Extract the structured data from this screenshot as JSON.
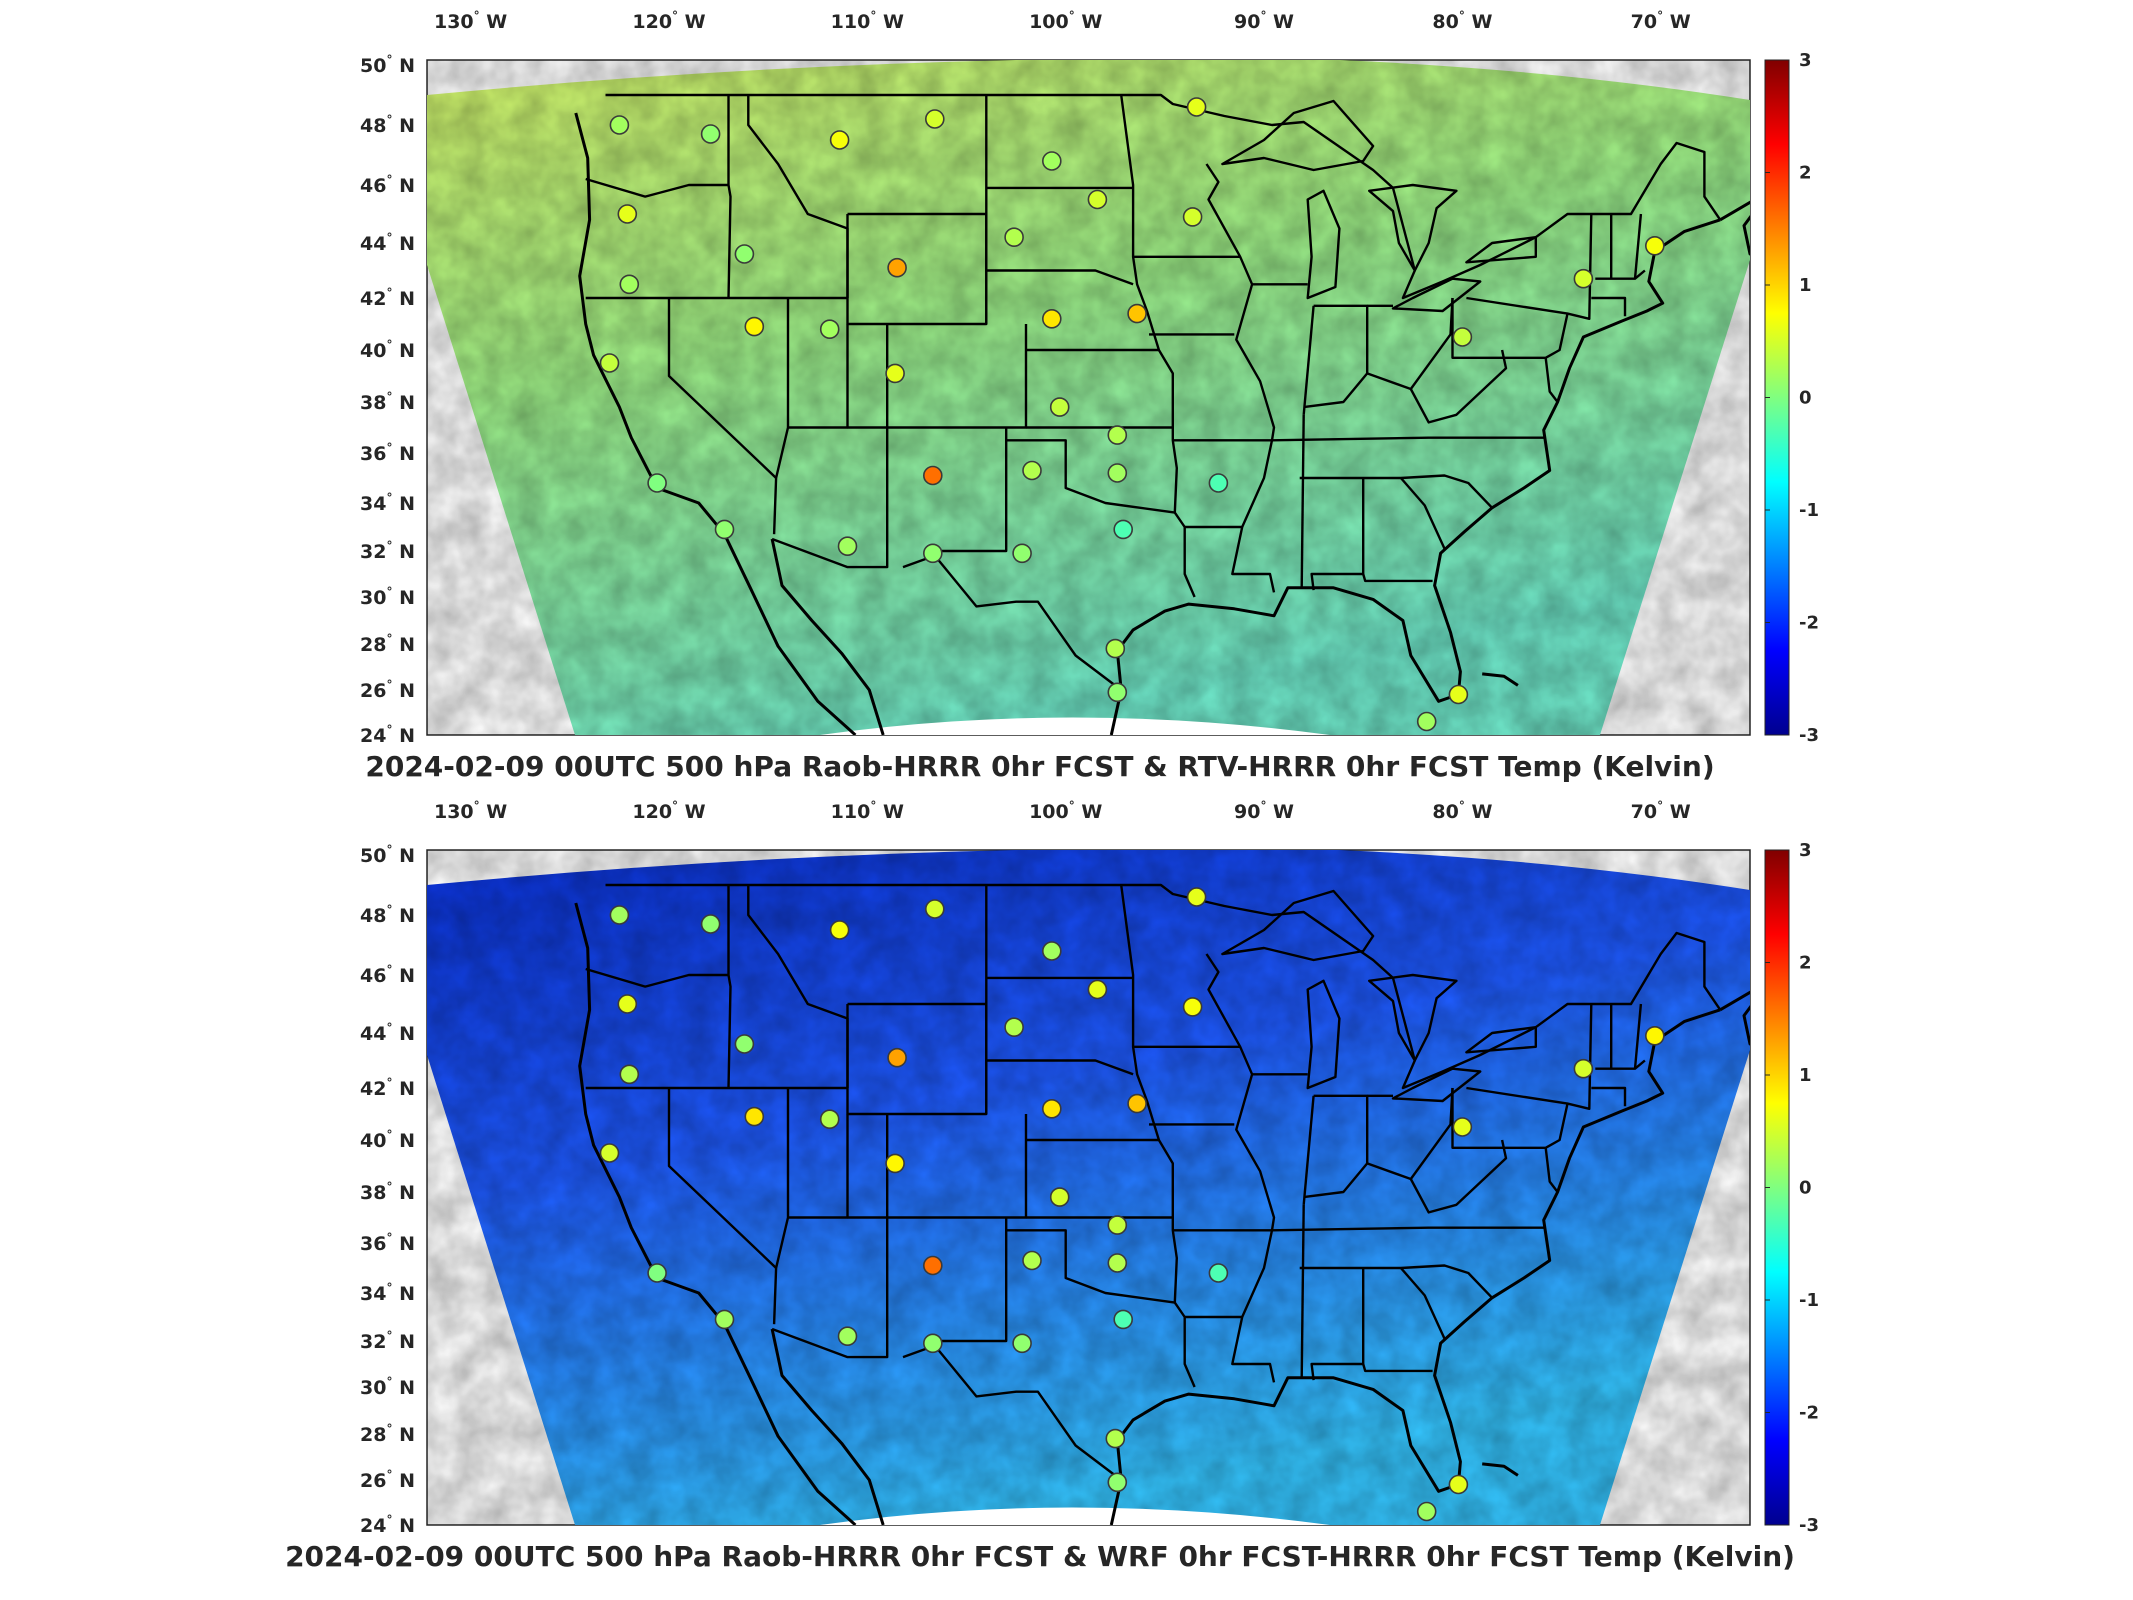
{
  "colorbar": {
    "ticks": [
      "3",
      "2",
      "1",
      "0",
      "-1",
      "-2",
      "-3"
    ],
    "range": [
      -3,
      3
    ],
    "colormap": [
      "#00008f",
      "#0000ff",
      "#0080ff",
      "#00ffff",
      "#80ff80",
      "#ffff00",
      "#ff8000",
      "#ff0000",
      "#800000"
    ]
  },
  "axes": {
    "lon_ticks": [
      "130",
      "120",
      "110",
      "100",
      "90",
      "80",
      "70"
    ],
    "lon_hemi": "W",
    "lat_ticks": [
      "50",
      "48",
      "46",
      "44",
      "42",
      "40",
      "38",
      "36",
      "34",
      "32",
      "30",
      "28",
      "26",
      "24"
    ],
    "lat_hemi": "N",
    "degree_symbol": "°"
  },
  "panels": [
    {
      "title": "2024-02-09 00UTC 500 hPa Raob-HRRR 0hr FCST & RTV-HRRR 0hr FCST Temp (Kelvin)",
      "field_mean_colors": [
        "#9fef88",
        "#6fe6c9",
        "#d6f56a"
      ],
      "stations": [
        {
          "lon": -122.5,
          "lat": 48.0,
          "value": 0.2
        },
        {
          "lon": -117.9,
          "lat": 47.7,
          "value": 0.1
        },
        {
          "lon": -111.4,
          "lat": 47.5,
          "value": 0.7
        },
        {
          "lon": -106.6,
          "lat": 48.2,
          "value": 0.5
        },
        {
          "lon": -100.7,
          "lat": 46.8,
          "value": 0.2
        },
        {
          "lon": -93.4,
          "lat": 48.6,
          "value": 0.6
        },
        {
          "lon": -122.1,
          "lat": 45.0,
          "value": 0.6
        },
        {
          "lon": -116.2,
          "lat": 43.6,
          "value": 0.1
        },
        {
          "lon": -108.5,
          "lat": 43.1,
          "value": 1.3
        },
        {
          "lon": -102.6,
          "lat": 44.2,
          "value": 0.3
        },
        {
          "lon": -98.4,
          "lat": 45.5,
          "value": 0.5
        },
        {
          "lon": -93.6,
          "lat": 44.9,
          "value": 0.5
        },
        {
          "lon": -122.0,
          "lat": 42.5,
          "value": 0.2
        },
        {
          "lon": -115.7,
          "lat": 40.9,
          "value": 0.8
        },
        {
          "lon": -111.9,
          "lat": 40.8,
          "value": 0.2
        },
        {
          "lon": -100.7,
          "lat": 41.2,
          "value": 0.9
        },
        {
          "lon": -96.4,
          "lat": 41.4,
          "value": 1.1
        },
        {
          "lon": -123.0,
          "lat": 39.5,
          "value": 0.4
        },
        {
          "lon": -108.6,
          "lat": 39.1,
          "value": 0.6
        },
        {
          "lon": -100.3,
          "lat": 37.8,
          "value": 0.4
        },
        {
          "lon": -97.4,
          "lat": 36.7,
          "value": 0.3
        },
        {
          "lon": -106.7,
          "lat": 35.1,
          "value": 1.6
        },
        {
          "lon": -101.7,
          "lat": 35.3,
          "value": 0.3
        },
        {
          "lon": -97.4,
          "lat": 35.2,
          "value": 0.2
        },
        {
          "lon": -92.3,
          "lat": 34.8,
          "value": -0.3
        },
        {
          "lon": -120.6,
          "lat": 34.8,
          "value": 0.0
        },
        {
          "lon": -117.2,
          "lat": 32.9,
          "value": 0.1
        },
        {
          "lon": -111.0,
          "lat": 32.2,
          "value": 0.2
        },
        {
          "lon": -106.7,
          "lat": 31.9,
          "value": 0.1
        },
        {
          "lon": -102.2,
          "lat": 31.9,
          "value": 0.1
        },
        {
          "lon": -97.1,
          "lat": 32.9,
          "value": -0.3
        },
        {
          "lon": -97.5,
          "lat": 27.8,
          "value": 0.3
        },
        {
          "lon": -97.4,
          "lat": 25.9,
          "value": 0.1
        },
        {
          "lon": -80.2,
          "lat": 25.8,
          "value": 0.6
        },
        {
          "lon": -81.8,
          "lat": 24.6,
          "value": 0.2
        },
        {
          "lon": -80.0,
          "lat": 40.5,
          "value": 0.4
        },
        {
          "lon": -73.9,
          "lat": 42.7,
          "value": 0.5
        },
        {
          "lon": -70.3,
          "lat": 43.9,
          "value": 0.7
        }
      ]
    },
    {
      "title": "2024-02-09 00UTC 500 hPa Raob-HRRR 0hr FCST & WRF 0hr FCST-HRRR 0hr FCST Temp (Kelvin)",
      "field_mean_colors": [
        "#1f5bff",
        "#35c6ff",
        "#0a2fd0"
      ],
      "stations": [
        {
          "lon": -122.5,
          "lat": 48.0,
          "value": 0.2
        },
        {
          "lon": -117.9,
          "lat": 47.7,
          "value": 0.1
        },
        {
          "lon": -111.4,
          "lat": 47.5,
          "value": 0.7
        },
        {
          "lon": -106.6,
          "lat": 48.2,
          "value": 0.5
        },
        {
          "lon": -100.7,
          "lat": 46.8,
          "value": 0.2
        },
        {
          "lon": -93.4,
          "lat": 48.6,
          "value": 0.6
        },
        {
          "lon": -122.1,
          "lat": 45.0,
          "value": 0.6
        },
        {
          "lon": -116.2,
          "lat": 43.6,
          "value": 0.1
        },
        {
          "lon": -108.5,
          "lat": 43.1,
          "value": 1.3
        },
        {
          "lon": -102.6,
          "lat": 44.2,
          "value": 0.3
        },
        {
          "lon": -98.4,
          "lat": 45.5,
          "value": 0.6
        },
        {
          "lon": -93.6,
          "lat": 44.9,
          "value": 0.7
        },
        {
          "lon": -122.0,
          "lat": 42.5,
          "value": 0.3
        },
        {
          "lon": -115.7,
          "lat": 40.9,
          "value": 0.9
        },
        {
          "lon": -111.9,
          "lat": 40.8,
          "value": 0.3
        },
        {
          "lon": -100.7,
          "lat": 41.2,
          "value": 0.9
        },
        {
          "lon": -96.4,
          "lat": 41.4,
          "value": 1.1
        },
        {
          "lon": -123.0,
          "lat": 39.5,
          "value": 0.5
        },
        {
          "lon": -108.6,
          "lat": 39.1,
          "value": 0.8
        },
        {
          "lon": -100.3,
          "lat": 37.8,
          "value": 0.5
        },
        {
          "lon": -97.4,
          "lat": 36.7,
          "value": 0.4
        },
        {
          "lon": -106.7,
          "lat": 35.1,
          "value": 1.6
        },
        {
          "lon": -101.7,
          "lat": 35.3,
          "value": 0.3
        },
        {
          "lon": -97.4,
          "lat": 35.2,
          "value": 0.3
        },
        {
          "lon": -92.3,
          "lat": 34.8,
          "value": -0.3
        },
        {
          "lon": -120.6,
          "lat": 34.8,
          "value": 0.0
        },
        {
          "lon": -117.2,
          "lat": 32.9,
          "value": 0.2
        },
        {
          "lon": -111.0,
          "lat": 32.2,
          "value": 0.2
        },
        {
          "lon": -106.7,
          "lat": 31.9,
          "value": 0.1
        },
        {
          "lon": -102.2,
          "lat": 31.9,
          "value": 0.1
        },
        {
          "lon": -97.1,
          "lat": 32.9,
          "value": -0.3
        },
        {
          "lon": -97.5,
          "lat": 27.8,
          "value": 0.3
        },
        {
          "lon": -97.4,
          "lat": 25.9,
          "value": 0.1
        },
        {
          "lon": -80.2,
          "lat": 25.8,
          "value": 0.6
        },
        {
          "lon": -81.8,
          "lat": 24.6,
          "value": 0.2
        },
        {
          "lon": -80.0,
          "lat": 40.5,
          "value": 0.6
        },
        {
          "lon": -73.9,
          "lat": 42.7,
          "value": 0.5
        },
        {
          "lon": -70.3,
          "lat": 43.9,
          "value": 0.8
        }
      ]
    }
  ]
}
